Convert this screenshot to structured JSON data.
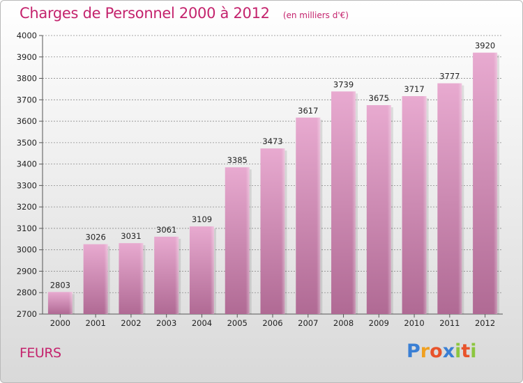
{
  "header": {
    "title": "Charges de Personnel 2000 à 2012",
    "subtitle": "(en milliers d'€)"
  },
  "place": "FEURS",
  "logo": {
    "text": "Proxiti",
    "letter_colors": [
      "#3a7fd4",
      "#f0a020",
      "#e8532b",
      "#3a7fd4",
      "#8cc63f",
      "#e8532b",
      "#8cc63f"
    ]
  },
  "colors": {
    "accent": "#c4236d",
    "bar_top": "#e8aad0",
    "bar_bottom": "#b06a94",
    "grid": "#8a8a8a"
  },
  "chart_data": {
    "type": "bar",
    "title": "Charges de Personnel 2000 à 2012",
    "subtitle": "(en milliers d'€)",
    "categories": [
      "2000",
      "2001",
      "2002",
      "2003",
      "2004",
      "2005",
      "2006",
      "2007",
      "2008",
      "2009",
      "2010",
      "2011",
      "2012"
    ],
    "values": [
      2803,
      3026,
      3031,
      3061,
      3109,
      3385,
      3473,
      3617,
      3739,
      3675,
      3717,
      3777,
      3920
    ],
    "ylim": [
      2700,
      4000
    ],
    "yticks": [
      2700,
      2800,
      2900,
      3000,
      3100,
      3200,
      3300,
      3400,
      3500,
      3600,
      3700,
      3800,
      3900,
      4000
    ],
    "grid": true,
    "grid_style": "dashed horizontal",
    "data_labels": true,
    "legend": "none"
  }
}
